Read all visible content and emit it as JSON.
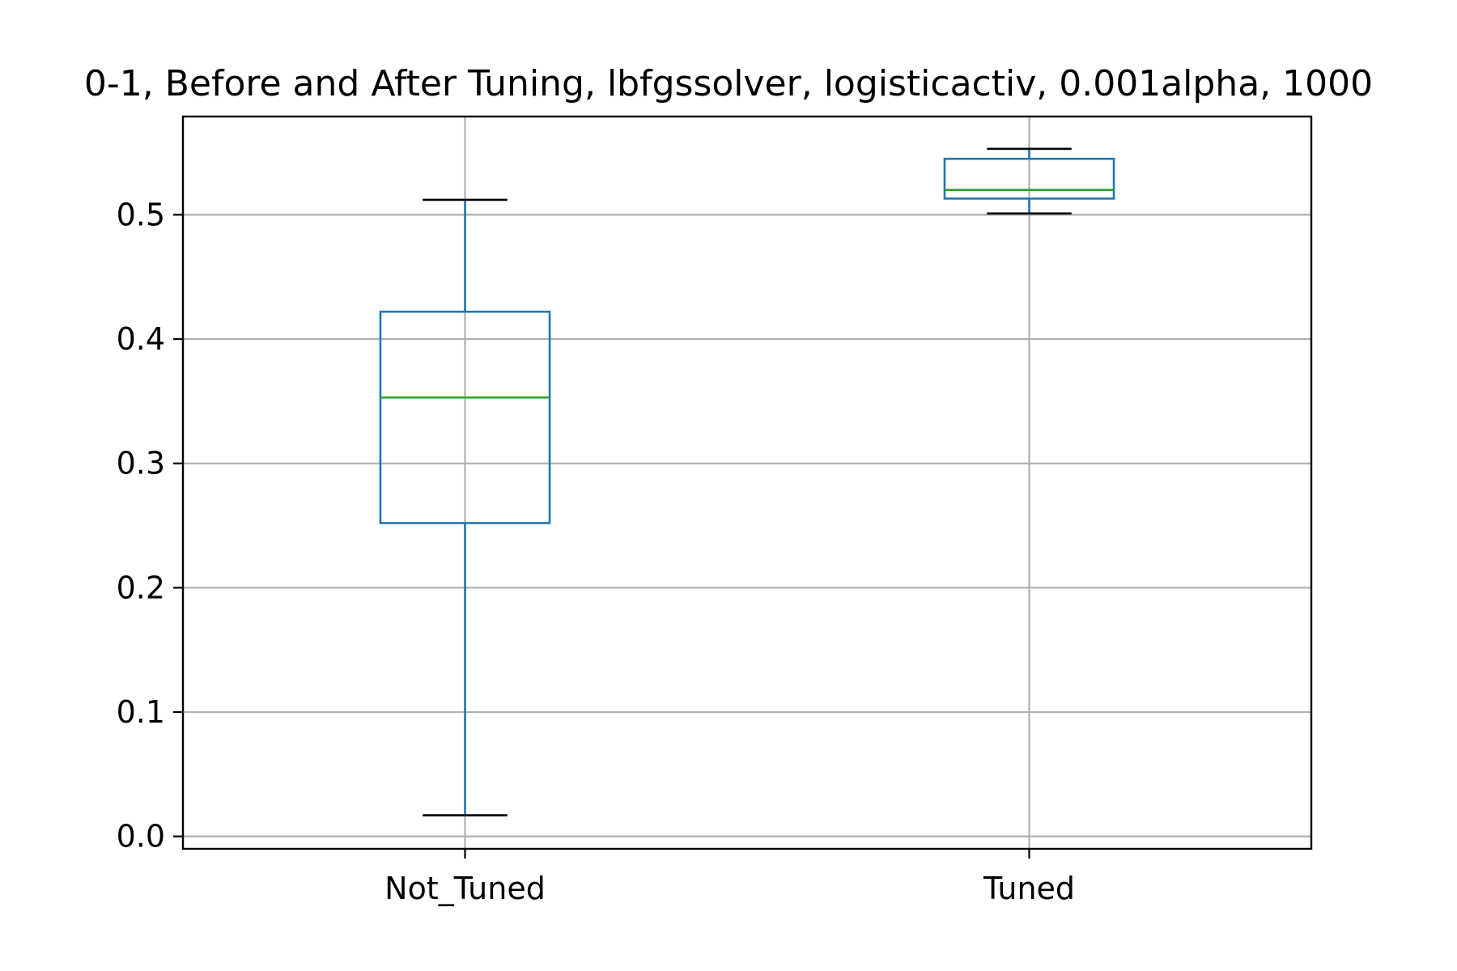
{
  "chart_data": {
    "type": "box",
    "title": "0-1, Before and After Tuning, lbfgssolver, logisticactiv, 0.001alpha, 1000",
    "xlabel": "",
    "ylabel": "",
    "categories": [
      "Not_Tuned",
      "Tuned"
    ],
    "boxes": [
      {
        "category": "Not_Tuned",
        "whisker_low": 0.017,
        "q1": 0.252,
        "median": 0.353,
        "q3": 0.422,
        "whisker_high": 0.512
      },
      {
        "category": "Tuned",
        "whisker_low": 0.501,
        "q1": 0.513,
        "median": 0.52,
        "q3": 0.545,
        "whisker_high": 0.553
      }
    ],
    "ylim": [
      -0.01,
      0.579
    ],
    "yticks": [
      0.0,
      0.1,
      0.2,
      0.3,
      0.4,
      0.5
    ],
    "ytick_labels": [
      "0.0",
      "0.1",
      "0.2",
      "0.3",
      "0.4",
      "0.5"
    ],
    "grid": true,
    "colors": {
      "box": "#1f77b4",
      "median": "#2ca02c",
      "caps": "#000000",
      "grid": "#b0b0b0"
    }
  }
}
